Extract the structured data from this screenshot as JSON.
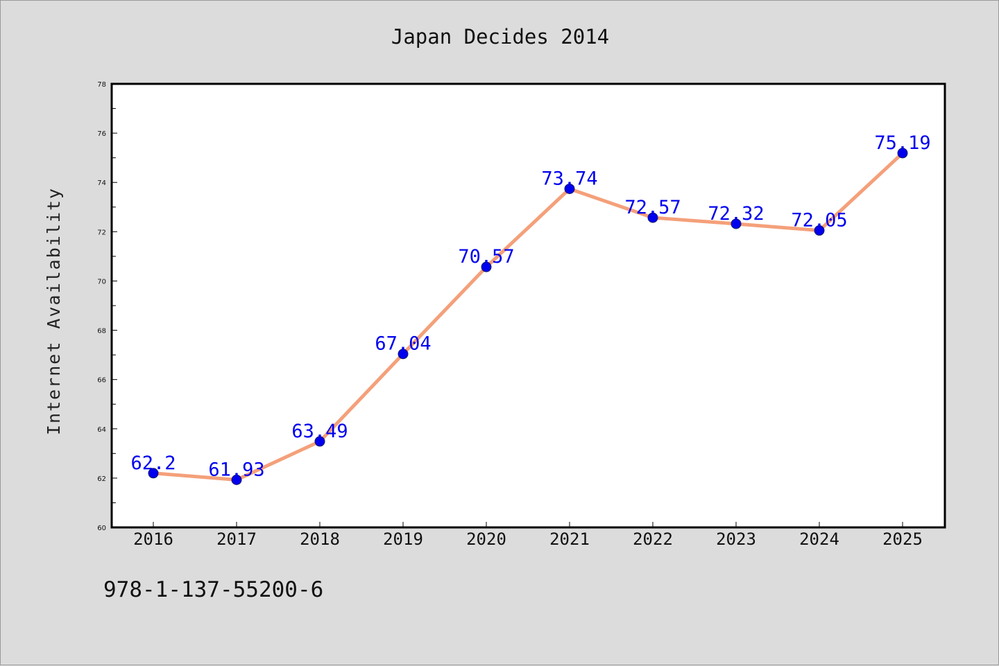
{
  "chart_data": {
    "type": "line",
    "title": "Japan Decides 2014",
    "xlabel": "",
    "ylabel": "Internet Availability",
    "x": [
      "2016",
      "2017",
      "2018",
      "2019",
      "2020",
      "2021",
      "2022",
      "2023",
      "2024",
      "2025"
    ],
    "series": [
      {
        "values": [
          62.2,
          61.93,
          63.49,
          67.04,
          70.57,
          73.74,
          72.57,
          72.32,
          72.05,
          75.19
        ],
        "data_labels": [
          "62.2",
          "61.93",
          "63.49",
          "67.04",
          "70.57",
          "73.74",
          "72.57",
          "72.32",
          "72.05",
          "75.19"
        ],
        "line_color": "#f4a07a",
        "marker_color": "#0000ee",
        "label_color": "#0000ee"
      }
    ],
    "ylim": [
      60,
      78
    ],
    "yticks": [
      "60",
      "62",
      "64",
      "66",
      "68",
      "70",
      "72",
      "74",
      "76",
      "78"
    ],
    "grid": false,
    "legend": "none"
  },
  "footnote": "978-1-137-55200-6",
  "colors": {
    "background": "#dcdcdc",
    "plot_area": "#ffffff",
    "axis": "#000000"
  }
}
